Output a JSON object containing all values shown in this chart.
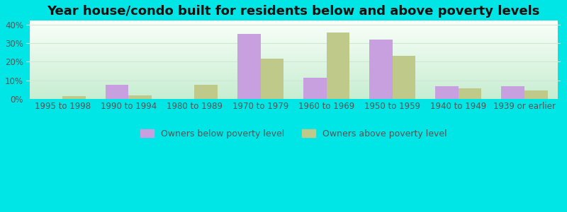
{
  "title": "Year house/condo built for residents below and above poverty levels",
  "categories": [
    "1995 to 1998",
    "1990 to 1994",
    "1980 to 1989",
    "1970 to 1979",
    "1960 to 1969",
    "1950 to 1959",
    "1940 to 1949",
    "1939 or earlier"
  ],
  "below_poverty": [
    0,
    7.5,
    0,
    35,
    11.5,
    32,
    7,
    7
  ],
  "above_poverty": [
    1.5,
    2,
    7.5,
    21.5,
    35.5,
    23,
    5.5,
    4.5
  ],
  "below_color": "#c8a0e0",
  "above_color": "#bec98a",
  "background_color": "#00e5e5",
  "ylim": [
    0,
    42
  ],
  "yticks": [
    0,
    10,
    20,
    30,
    40
  ],
  "ytick_labels": [
    "0%",
    "10%",
    "20%",
    "30%",
    "40%"
  ],
  "legend_below": "Owners below poverty level",
  "legend_above": "Owners above poverty level",
  "bar_width": 0.35,
  "title_fontsize": 13,
  "tick_fontsize": 8.5,
  "legend_fontsize": 9,
  "grid_color": "#d0e8d0",
  "axis_label_color": "#555555"
}
